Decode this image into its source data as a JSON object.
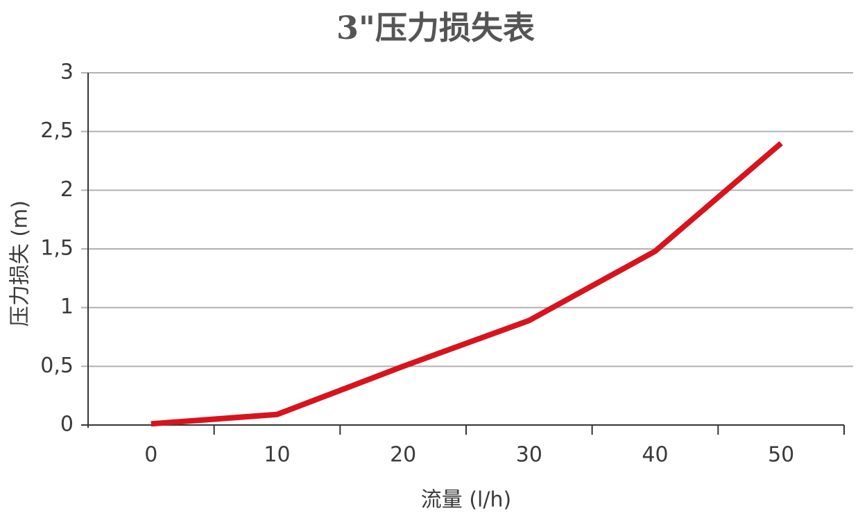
{
  "chart_data": {
    "type": "line",
    "title": "3\"压力损失表",
    "x_label": "流量 (l/h)",
    "y_label": "压力损失 (m)",
    "x": [
      0,
      10,
      20,
      30,
      40,
      50
    ],
    "series": [
      {
        "name": "压力损失",
        "color": "#d7141e",
        "values": [
          0.01,
          0.09,
          0.5,
          0.89,
          1.48,
          2.4
        ]
      }
    ],
    "xlim": [
      -5,
      55
    ],
    "xticks": [
      0,
      10,
      20,
      30,
      40,
      50
    ],
    "ylim": [
      0,
      3
    ],
    "yticks": [
      0,
      {
        "value": 0.5,
        "label": "0,5"
      },
      1,
      {
        "value": 1.5,
        "label": "1,5"
      },
      2,
      {
        "value": 2.5,
        "label": "2,5"
      },
      3
    ],
    "grid": true
  }
}
